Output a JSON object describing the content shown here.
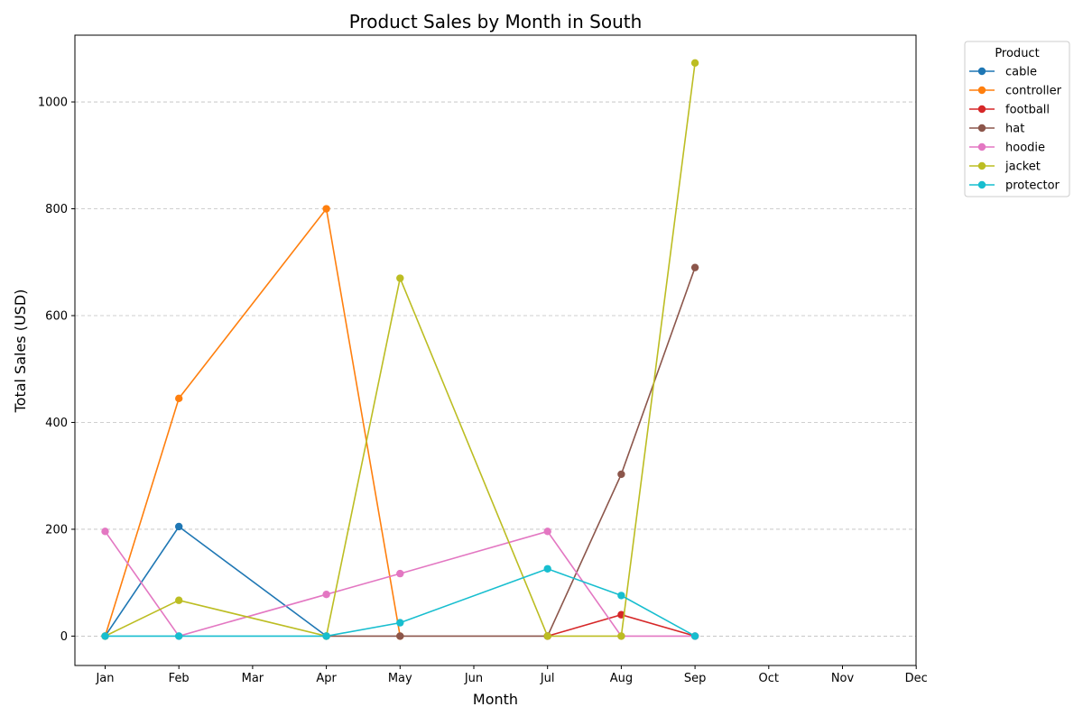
{
  "chart_data": {
    "type": "line",
    "title": "Product Sales by Month in South",
    "xlabel": "Month",
    "ylabel": "Total Sales (USD)",
    "categories": [
      "Jan",
      "Feb",
      "Mar",
      "Apr",
      "May",
      "Jun",
      "Jul",
      "Aug",
      "Sep",
      "Oct",
      "Nov",
      "Dec"
    ],
    "ylim": [
      -55,
      1125
    ],
    "yticks": [
      0,
      200,
      400,
      600,
      800,
      1000
    ],
    "grid": "horizontal dashed",
    "legend": {
      "title": "Product",
      "placement": "outside top-right"
    },
    "series": [
      {
        "name": "cable",
        "color": "#1f77b4",
        "points": [
          [
            "Jan",
            0
          ],
          [
            "Feb",
            205
          ],
          [
            "Apr",
            0
          ]
        ]
      },
      {
        "name": "controller",
        "color": "#ff7f0e",
        "points": [
          [
            "Jan",
            0
          ],
          [
            "Feb",
            445
          ],
          [
            "Apr",
            800
          ],
          [
            "May",
            0
          ]
        ]
      },
      {
        "name": "football",
        "color": "#d62728",
        "points": [
          [
            "Jul",
            0
          ],
          [
            "Aug",
            40
          ],
          [
            "Sep",
            0
          ]
        ]
      },
      {
        "name": "hat",
        "color": "#8c564b",
        "points": [
          [
            "Apr",
            0
          ],
          [
            "May",
            0
          ],
          [
            "Jul",
            0
          ],
          [
            "Aug",
            303
          ],
          [
            "Sep",
            690
          ]
        ]
      },
      {
        "name": "hoodie",
        "color": "#e377c2",
        "points": [
          [
            "Jan",
            196
          ],
          [
            "Feb",
            0
          ],
          [
            "Apr",
            78
          ],
          [
            "May",
            117
          ],
          [
            "Jul",
            196
          ],
          [
            "Aug",
            0
          ],
          [
            "Sep",
            0
          ]
        ]
      },
      {
        "name": "jacket",
        "color": "#bcbd22",
        "points": [
          [
            "Jan",
            0
          ],
          [
            "Feb",
            67
          ],
          [
            "Apr",
            0
          ],
          [
            "May",
            670
          ],
          [
            "Jul",
            0
          ],
          [
            "Aug",
            0
          ],
          [
            "Sep",
            1073
          ]
        ]
      },
      {
        "name": "protector",
        "color": "#17becf",
        "points": [
          [
            "Jan",
            0
          ],
          [
            "Feb",
            0
          ],
          [
            "Apr",
            0
          ],
          [
            "May",
            25
          ],
          [
            "Jul",
            126
          ],
          [
            "Aug",
            76
          ],
          [
            "Sep",
            0
          ]
        ]
      }
    ]
  }
}
